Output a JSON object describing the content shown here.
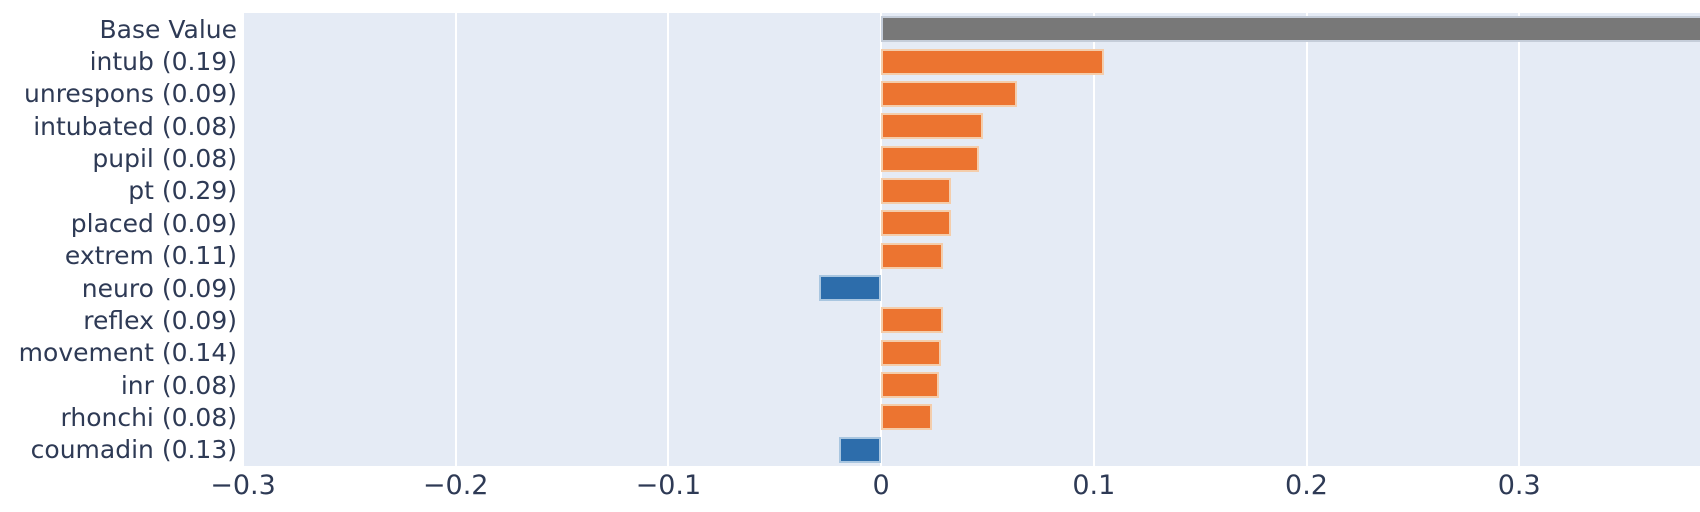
{
  "chart_data": {
    "type": "bar",
    "orientation": "horizontal",
    "title": "",
    "xlabel": "",
    "ylabel": "",
    "legend": null,
    "grid": "vertical white gridlines on shaded plot background",
    "xlim": [
      -0.3,
      0.385
    ],
    "xticks": [
      -0.3,
      -0.2,
      -0.1,
      0,
      0.1,
      0.2,
      0.3
    ],
    "xtick_labels": [
      "−0.3",
      "−0.2",
      "−0.1",
      "0",
      "0.1",
      "0.2",
      "0.3"
    ],
    "categories": [
      "Base Value",
      "intub (0.19)",
      "unrespons (0.09)",
      "intubated (0.08)",
      "pupil (0.08)",
      "pt (0.29)",
      "placed (0.09)",
      "extrem (0.11)",
      "neuro (0.09)",
      "reflex (0.09)",
      "movement (0.14)",
      "inr (0.08)",
      "rhonchi (0.08)",
      "coumadin (0.13)"
    ],
    "values": [
      0.385,
      0.105,
      0.064,
      0.048,
      0.046,
      0.033,
      0.033,
      0.029,
      -0.029,
      0.029,
      0.028,
      0.027,
      0.024,
      -0.02
    ],
    "bar_types": [
      "base",
      "pos",
      "pos",
      "pos",
      "pos",
      "pos",
      "pos",
      "pos",
      "neg",
      "pos",
      "pos",
      "pos",
      "pos",
      "neg"
    ],
    "base_bar_clipped_at_right_edge": true,
    "colors": {
      "base": "#787878",
      "pos": "#ec7430",
      "neg": "#2d6dab",
      "plot_bg": "#e5ebf5",
      "grid": "#ffffff",
      "text": "#2e3a55"
    },
    "border_colors": {
      "base": "#c5cdd9",
      "pos": "#f4cdab",
      "neg": "#a9c6e0"
    }
  }
}
